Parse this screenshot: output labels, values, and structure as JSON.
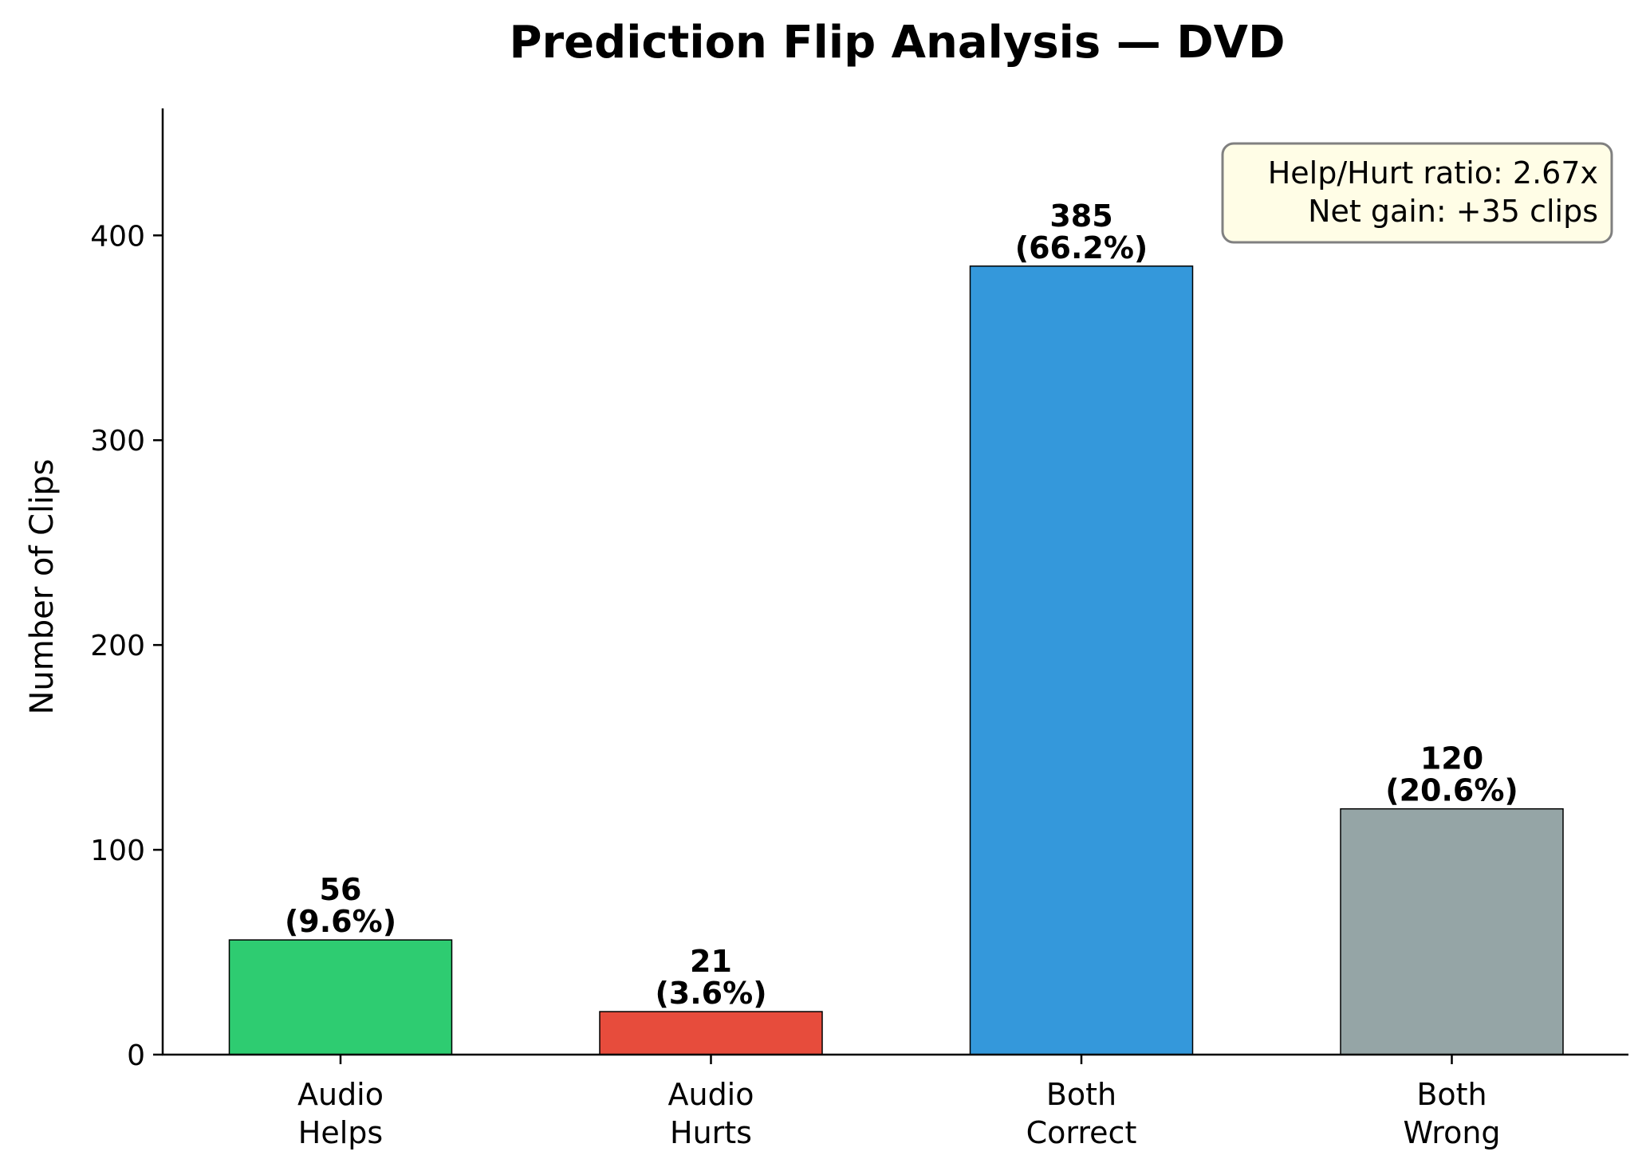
{
  "chart_data": {
    "type": "bar",
    "title": "Prediction Flip Analysis — DVD",
    "xlabel": "",
    "ylabel": "Number of Clips",
    "ylim": [
      0,
      462
    ],
    "yticks": [
      0,
      100,
      200,
      300,
      400
    ],
    "categories": [
      [
        "Audio",
        "Helps"
      ],
      [
        "Audio",
        "Hurts"
      ],
      [
        "Both",
        "Correct"
      ],
      [
        "Both",
        "Wrong"
      ]
    ],
    "values": [
      56,
      21,
      385,
      120
    ],
    "percent_labels": [
      "(9.6%)",
      "(3.6%)",
      "(66.2%)",
      "(20.6%)"
    ],
    "colors": [
      "#2ecc71",
      "#e74c3c",
      "#3498db",
      "#95a5a6"
    ],
    "annotation": {
      "lines": [
        "Help/Hurt ratio: 2.67x",
        "Net gain: +35 clips"
      ],
      "placement": "top-right",
      "background": "#fffde6",
      "border": "#808080"
    },
    "grid": false
  }
}
